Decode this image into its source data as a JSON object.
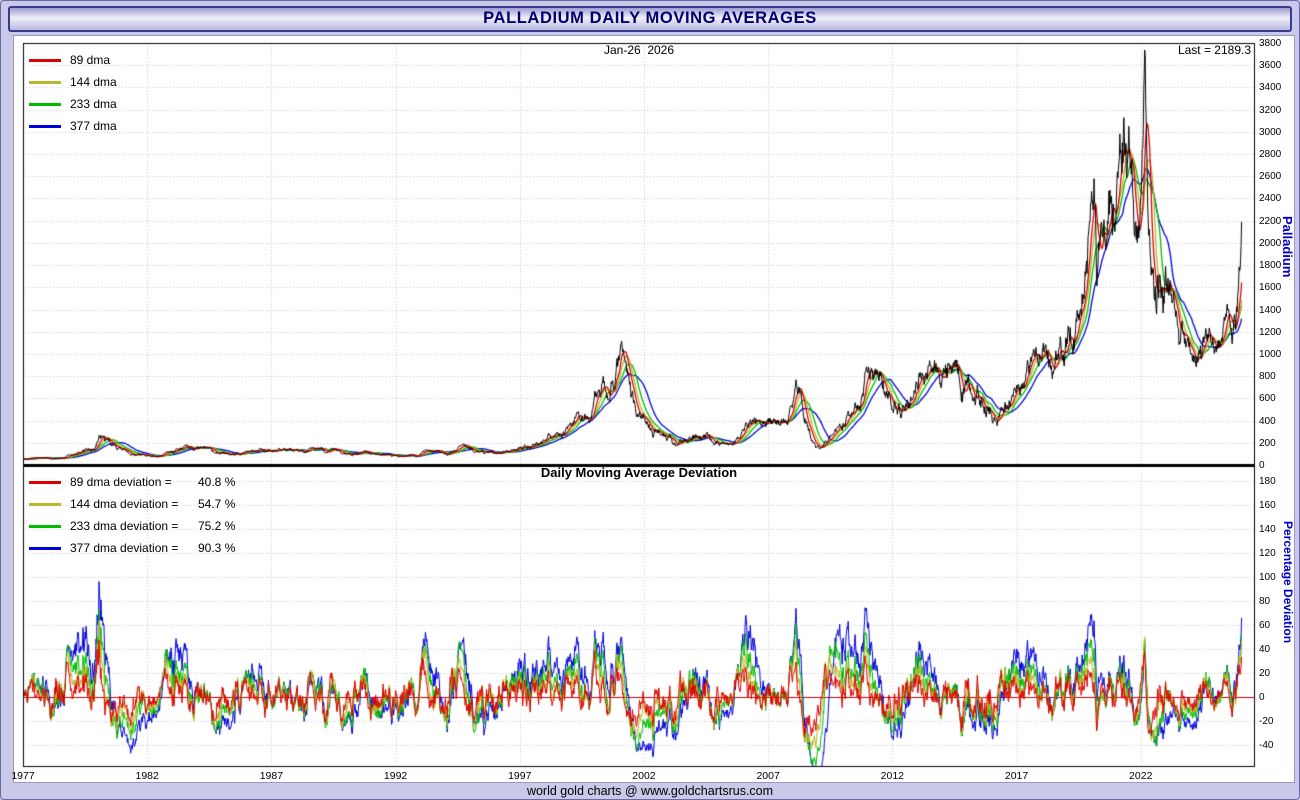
{
  "page": {
    "title": "PALLADIUM DAILY MOVING AVERAGES",
    "footer": "world gold charts @ www.goldchartsrus.com"
  },
  "top_chart": {
    "date_label": "Jan-26  2026",
    "last_label": "Last = 2189.3",
    "axis_label": "Palladium",
    "y_ticks": [
      0,
      200,
      400,
      600,
      800,
      1000,
      1200,
      1400,
      1600,
      1800,
      2000,
      2200,
      2400,
      2600,
      2800,
      3000,
      3200,
      3400,
      3600,
      3800
    ],
    "legend": [
      {
        "label": "89 dma",
        "color": "#dd0000"
      },
      {
        "label": "144 dma",
        "color": "#b8b82a"
      },
      {
        "label": "233 dma",
        "color": "#00bb00"
      },
      {
        "label": "377 dma",
        "color": "#0000dd"
      }
    ]
  },
  "bottom_chart": {
    "title": "Daily Moving Average Deviation",
    "axis_label": "Percentage Deviation",
    "y_ticks": [
      -40,
      -20,
      0,
      20,
      40,
      60,
      80,
      100,
      120,
      140,
      160,
      180
    ],
    "legend": [
      {
        "label": "89 dma deviation =",
        "value": "40.8 %",
        "color": "#dd0000"
      },
      {
        "label": "144 dma deviation =",
        "value": "54.7 %",
        "color": "#b8b82a"
      },
      {
        "label": "233 dma deviation =",
        "value": "75.2 %",
        "color": "#00bb00"
      },
      {
        "label": "377 dma deviation =",
        "value": "90.3 %",
        "color": "#0000dd"
      }
    ]
  },
  "x_axis": {
    "ticks": [
      "1977",
      "1982",
      "1987",
      "1992",
      "1997",
      "2002",
      "2007",
      "2012",
      "2017",
      "2022"
    ]
  },
  "chart_data": {
    "type": "line",
    "title": "PALLADIUM DAILY MOVING AVERAGES",
    "subtitle": "Daily Moving Average Deviation",
    "x_range": [
      1977,
      2026.6
    ],
    "x_ticks": [
      1977,
      1982,
      1987,
      1992,
      1997,
      2002,
      2007,
      2012,
      2017,
      2022
    ],
    "panels": [
      {
        "name": "palladium-price",
        "ylabel": "Palladium",
        "ylim": [
          0,
          3800
        ],
        "series": [
          "price",
          "89 dma",
          "144 dma",
          "233 dma",
          "377 dma"
        ],
        "grid": true
      },
      {
        "name": "moving-average-deviation",
        "ylabel": "Percentage Deviation",
        "ylim": [
          -58,
          190
        ],
        "unit": "%",
        "grid": true,
        "zero_line": true
      }
    ],
    "ma_windows_days": [
      89,
      144,
      233,
      377
    ],
    "colors": {
      "price": "#000000",
      "ma": [
        "#dd0000",
        "#b8b82a",
        "#00bb00",
        "#0000dd"
      ],
      "grid": "#c6c6da",
      "zero_line": "#cc0000",
      "axis_label": "#0000cc"
    },
    "last_point": {
      "date": "Jan-26 2026",
      "x": 2026.07,
      "price": 2189.3
    },
    "current_deviations_pct": {
      "dma89": 40.8,
      "dma144": 54.7,
      "dma233": 75.2,
      "dma377": 90.3
    },
    "price_anchors": [
      [
        1977.0,
        52
      ],
      [
        1977.5,
        55
      ],
      [
        1978.0,
        62
      ],
      [
        1978.5,
        70
      ],
      [
        1979.0,
        85
      ],
      [
        1979.5,
        120
      ],
      [
        1979.9,
        180
      ],
      [
        1980.1,
        320
      ],
      [
        1980.3,
        230
      ],
      [
        1980.6,
        180
      ],
      [
        1981.0,
        130
      ],
      [
        1981.5,
        95
      ],
      [
        1982.0,
        65
      ],
      [
        1982.4,
        60
      ],
      [
        1982.8,
        100
      ],
      [
        1983.2,
        150
      ],
      [
        1983.6,
        160
      ],
      [
        1984.0,
        155
      ],
      [
        1984.5,
        140
      ],
      [
        1985.0,
        105
      ],
      [
        1985.5,
        110
      ],
      [
        1986.0,
        120
      ],
      [
        1986.5,
        130
      ],
      [
        1987.0,
        130
      ],
      [
        1987.5,
        135
      ],
      [
        1988.0,
        120
      ],
      [
        1988.5,
        125
      ],
      [
        1989.0,
        140
      ],
      [
        1989.5,
        135
      ],
      [
        1990.0,
        115
      ],
      [
        1990.5,
        105
      ],
      [
        1991.0,
        95
      ],
      [
        1991.5,
        88
      ],
      [
        1992.0,
        82
      ],
      [
        1992.5,
        90
      ],
      [
        1993.0,
        110
      ],
      [
        1993.5,
        135
      ],
      [
        1994.0,
        140
      ],
      [
        1994.5,
        150
      ],
      [
        1995.0,
        155
      ],
      [
        1995.5,
        140
      ],
      [
        1996.0,
        130
      ],
      [
        1996.5,
        125
      ],
      [
        1997.0,
        150
      ],
      [
        1997.4,
        180
      ],
      [
        1997.8,
        210
      ],
      [
        1998.2,
        250
      ],
      [
        1998.6,
        280
      ],
      [
        1999.0,
        330
      ],
      [
        1999.4,
        360
      ],
      [
        1999.8,
        420
      ],
      [
        2000.1,
        550
      ],
      [
        2000.4,
        650
      ],
      [
        2000.7,
        750
      ],
      [
        2000.95,
        920
      ],
      [
        2001.1,
        1060
      ],
      [
        2001.25,
        850
      ],
      [
        2001.5,
        640
      ],
      [
        2001.8,
        440
      ],
      [
        2002.1,
        380
      ],
      [
        2002.5,
        330
      ],
      [
        2002.9,
        250
      ],
      [
        2003.2,
        200
      ],
      [
        2003.6,
        220
      ],
      [
        2004.0,
        240
      ],
      [
        2004.4,
        270
      ],
      [
        2004.8,
        215
      ],
      [
        2005.2,
        195
      ],
      [
        2005.6,
        190
      ],
      [
        2006.0,
        280
      ],
      [
        2006.35,
        390
      ],
      [
        2006.7,
        320
      ],
      [
        2007.0,
        345
      ],
      [
        2007.4,
        370
      ],
      [
        2007.8,
        360
      ],
      [
        2008.15,
        560
      ],
      [
        2008.5,
        440
      ],
      [
        2008.75,
        250
      ],
      [
        2008.95,
        180
      ],
      [
        2009.2,
        210
      ],
      [
        2009.5,
        240
      ],
      [
        2009.8,
        320
      ],
      [
        2010.1,
        430
      ],
      [
        2010.4,
        470
      ],
      [
        2010.7,
        520
      ],
      [
        2010.95,
        700
      ],
      [
        2011.15,
        800
      ],
      [
        2011.4,
        760
      ],
      [
        2011.65,
        740
      ],
      [
        2011.85,
        600
      ],
      [
        2012.1,
        660
      ],
      [
        2012.4,
        620
      ],
      [
        2012.7,
        600
      ],
      [
        2013.0,
        720
      ],
      [
        2013.3,
        740
      ],
      [
        2013.6,
        720
      ],
      [
        2013.9,
        730
      ],
      [
        2014.2,
        770
      ],
      [
        2014.55,
        870
      ],
      [
        2014.8,
        820
      ],
      [
        2015.1,
        780
      ],
      [
        2015.4,
        720
      ],
      [
        2015.7,
        600
      ],
      [
        2015.95,
        550
      ],
      [
        2016.1,
        490
      ],
      [
        2016.4,
        570
      ],
      [
        2016.7,
        680
      ],
      [
        2017.0,
        740
      ],
      [
        2017.3,
        800
      ],
      [
        2017.6,
        900
      ],
      [
        2017.9,
        1000
      ],
      [
        2018.1,
        1060
      ],
      [
        2018.35,
        960
      ],
      [
        2018.6,
        930
      ],
      [
        2018.85,
        1150
      ],
      [
        2019.1,
        1350
      ],
      [
        2019.35,
        1330
      ],
      [
        2019.6,
        1520
      ],
      [
        2019.85,
        1800
      ],
      [
        2020.05,
        2200
      ],
      [
        2020.13,
        2650
      ],
      [
        2020.22,
        1700
      ],
      [
        2020.35,
        1950
      ],
      [
        2020.55,
        1950
      ],
      [
        2020.75,
        2250
      ],
      [
        2020.95,
        2350
      ],
      [
        2021.1,
        2450
      ],
      [
        2021.3,
        2950
      ],
      [
        2021.45,
        2750
      ],
      [
        2021.6,
        2700
      ],
      [
        2021.8,
        2000
      ],
      [
        2021.95,
        1850
      ],
      [
        2022.1,
        2350
      ],
      [
        2022.17,
        3250
      ],
      [
        2022.3,
        2250
      ],
      [
        2022.5,
        2050
      ],
      [
        2022.7,
        2150
      ],
      [
        2022.9,
        1850
      ],
      [
        2023.1,
        1600
      ],
      [
        2023.35,
        1450
      ],
      [
        2023.6,
        1250
      ],
      [
        2023.85,
        1100
      ],
      [
        2024.1,
        980
      ],
      [
        2024.35,
        930
      ],
      [
        2024.6,
        960
      ],
      [
        2024.8,
        1050
      ],
      [
        2024.95,
        980
      ],
      [
        2025.1,
        950
      ],
      [
        2025.3,
        970
      ],
      [
        2025.5,
        1150
      ],
      [
        2025.65,
        1250
      ],
      [
        2025.8,
        1350
      ],
      [
        2025.9,
        1500
      ],
      [
        2026.0,
        1800
      ],
      [
        2026.07,
        2189.3
      ]
    ]
  }
}
